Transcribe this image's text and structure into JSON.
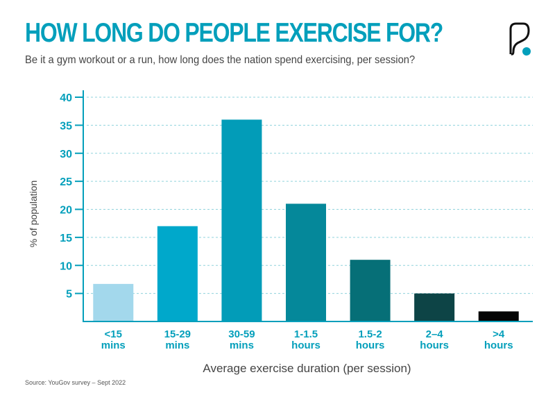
{
  "title": "HOW LONG DO PEOPLE EXERCISE FOR?",
  "subtitle": "Be it a gym workout or a run, how long does the nation spend exercising, per session?",
  "source": "Source: YouGov survey – Sept 2022",
  "logo": {
    "icon": "brand-p-logo-icon",
    "colors": [
      "#111111",
      "#039fbb"
    ]
  },
  "chart_data": {
    "type": "bar",
    "title": "HOW LONG DO PEOPLE EXERCISE FOR?",
    "xlabel": "Average exercise duration (per session)",
    "ylabel": "% of population",
    "categories": [
      [
        "<15",
        "mins"
      ],
      [
        "15-29",
        "mins"
      ],
      [
        "30-59",
        "mins"
      ],
      [
        "1-1.5",
        "hours"
      ],
      [
        "1.5-2",
        "hours"
      ],
      [
        "2–4",
        "hours"
      ],
      [
        ">4",
        "hours"
      ]
    ],
    "values": [
      6.7,
      17,
      36,
      21,
      11,
      5,
      1.8
    ],
    "colors": [
      "#a3d8ec",
      "#00a8cb",
      "#029cb8",
      "#05889a",
      "#066f77",
      "#0d4446",
      "#050505"
    ],
    "ylim": [
      0,
      40
    ],
    "yticks": [
      5,
      10,
      15,
      20,
      25,
      30,
      35,
      40
    ],
    "grid": true,
    "accent": "#039fbb"
  }
}
